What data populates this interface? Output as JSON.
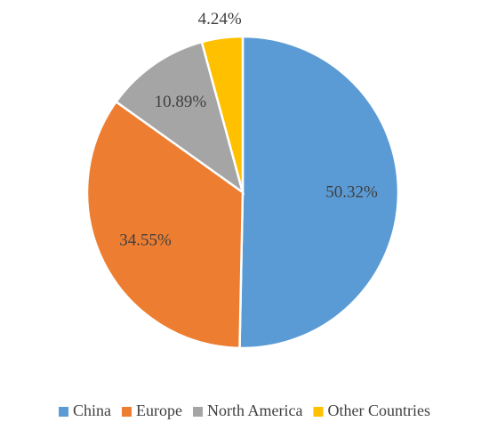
{
  "chart_data": {
    "type": "pie",
    "categories": [
      "China",
      "Europe",
      "North America",
      "Other Countries"
    ],
    "values": [
      50.32,
      34.55,
      10.89,
      4.24
    ],
    "value_labels": [
      "50.32%",
      "34.55%",
      "10.89%",
      "4.24%"
    ],
    "colors": [
      "#5b9bd5",
      "#ed7d31",
      "#a5a5a5",
      "#ffc000"
    ],
    "legend": "bottom"
  }
}
